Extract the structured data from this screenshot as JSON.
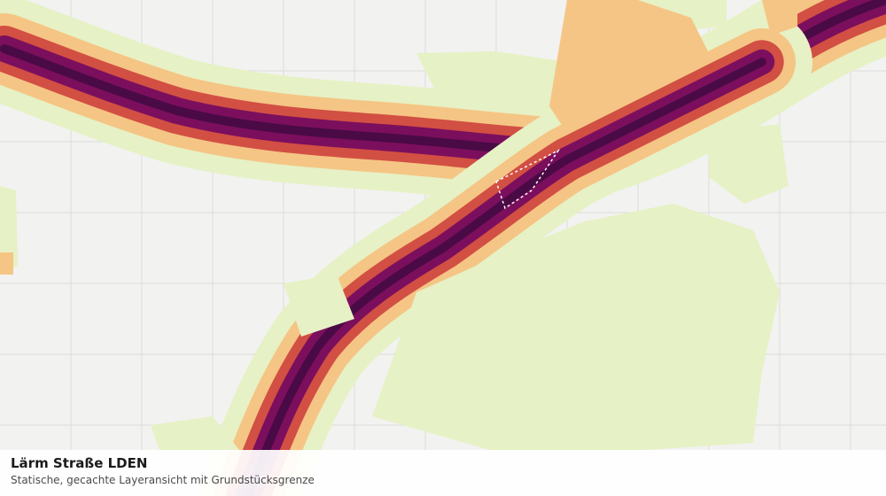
{
  "map": {
    "layer_colors": {
      "background": "#f2f2f0",
      "grid": "#dcdcda",
      "noise_band_1": "#e6f1c5",
      "noise_band_2": "#f5c585",
      "noise_band_3": "#d24f43",
      "noise_band_4": "#7b0f5d",
      "noise_band_5": "#4a0a45",
      "parcel_outline": "#ffffff"
    }
  },
  "caption": {
    "title": "Lärm Straße LDEN",
    "subtitle": "Statische, gecachte Layeransicht mit Grundstücksgrenze"
  }
}
